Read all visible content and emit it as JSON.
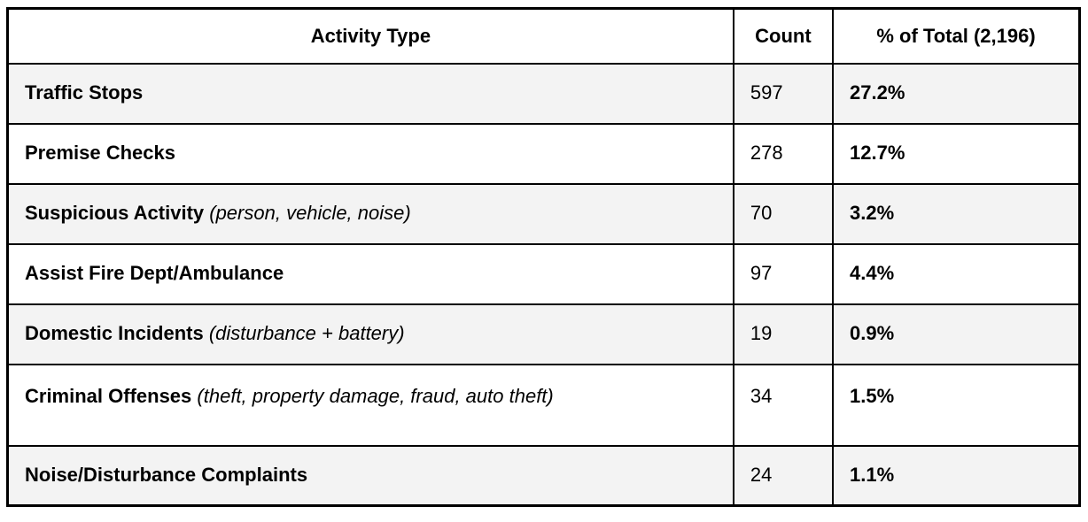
{
  "table": {
    "headers": {
      "activity": "Activity Type",
      "count": "Count",
      "percent": "% of Total (2,196)"
    },
    "rows": [
      {
        "name": "Traffic Stops",
        "note": "",
        "count": "597",
        "percent": "27.2%"
      },
      {
        "name": "Premise Checks",
        "note": "",
        "count": "278",
        "percent": "12.7%"
      },
      {
        "name": "Suspicious Activity",
        "note": "(person, vehicle, noise)",
        "count": "70",
        "percent": "3.2%"
      },
      {
        "name": "Assist Fire Dept/Ambulance",
        "note": "",
        "count": "97",
        "percent": "4.4%"
      },
      {
        "name": "Domestic Incidents",
        "note": "(disturbance + battery)",
        "count": "19",
        "percent": "0.9%"
      },
      {
        "name": "Criminal Offenses",
        "note": "(theft, property damage, fraud, auto theft)",
        "count": "34",
        "percent": "1.5%"
      },
      {
        "name": "Noise/Disturbance Complaints",
        "note": "",
        "count": "24",
        "percent": "1.1%"
      }
    ],
    "colors": {
      "row_alt_background": "#f3f3f3",
      "border": "#000000",
      "text": "#000000"
    }
  }
}
